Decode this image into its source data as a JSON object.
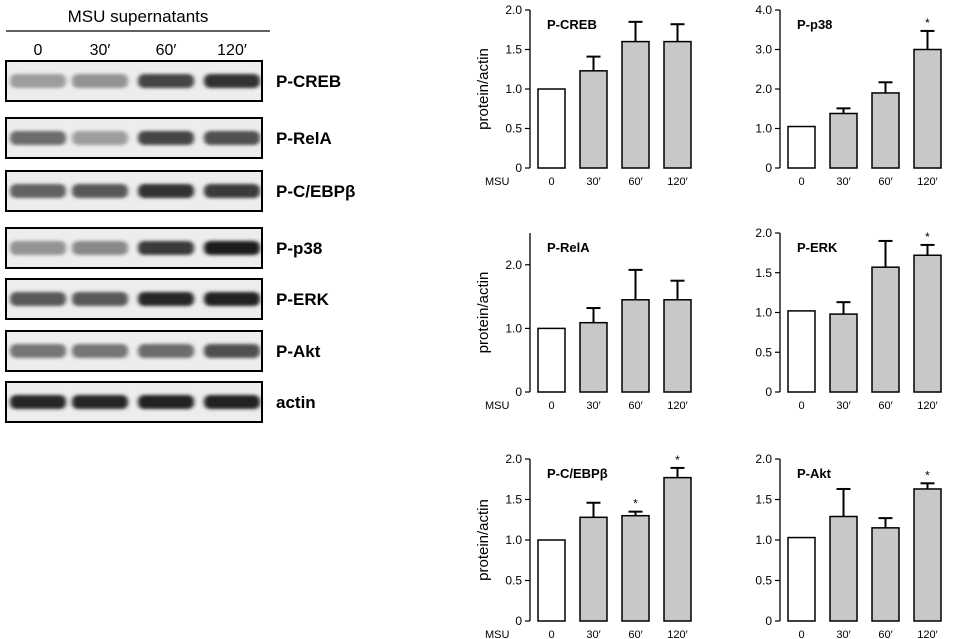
{
  "blot": {
    "header": "MSU supernatants",
    "lanes": [
      "0",
      "30′",
      "60′",
      "120′"
    ],
    "rows": [
      {
        "label": "P-CREB",
        "intensity": [
          0.3,
          0.35,
          0.75,
          0.85
        ]
      },
      {
        "label": "P-RelA",
        "intensity": [
          0.55,
          0.3,
          0.75,
          0.7
        ]
      },
      {
        "label": "P-C/EBPβ",
        "intensity": [
          0.6,
          0.65,
          0.85,
          0.8
        ]
      },
      {
        "label": "P-p38",
        "intensity": [
          0.35,
          0.4,
          0.8,
          0.95
        ]
      },
      {
        "label": "P-ERK",
        "intensity": [
          0.65,
          0.65,
          0.9,
          0.92
        ]
      },
      {
        "label": "P-Akt",
        "intensity": [
          0.5,
          0.5,
          0.55,
          0.7
        ]
      },
      {
        "label": "actin",
        "intensity": [
          0.9,
          0.9,
          0.92,
          0.92
        ]
      }
    ]
  },
  "colors": {
    "control_bar": "#ffffff",
    "treated_bar": "#c8c8c8",
    "stroke": "#000000"
  },
  "chart_data": [
    {
      "type": "bar",
      "title": "P-CREB",
      "ylabel": "protein/actin",
      "x_row_label": "MSU",
      "categories": [
        "0",
        "30′",
        "60′",
        "120′"
      ],
      "values": [
        1.0,
        1.23,
        1.6,
        1.6
      ],
      "errors": [
        0,
        0.18,
        0.25,
        0.22
      ],
      "significant": [
        false,
        false,
        false,
        false
      ],
      "ylim": [
        0,
        2.0
      ],
      "yticks": [
        "0",
        "0.5",
        "1.0",
        "1.5",
        "2.0"
      ],
      "ytick_values": [
        0,
        0.5,
        1.0,
        1.5,
        2.0
      ]
    },
    {
      "type": "bar",
      "title": "P-p38",
      "ylabel": "",
      "x_row_label": "",
      "categories": [
        "0",
        "30′",
        "60′",
        "120′"
      ],
      "values": [
        1.05,
        1.38,
        1.9,
        3.0
      ],
      "errors": [
        0,
        0.13,
        0.27,
        0.47
      ],
      "significant": [
        false,
        false,
        false,
        true
      ],
      "ylim": [
        0,
        4.0
      ],
      "yticks": [
        "0",
        "1.0",
        "2.0",
        "3.0",
        "4.0"
      ],
      "ytick_values": [
        0,
        1.0,
        2.0,
        3.0,
        4.0
      ]
    },
    {
      "type": "bar",
      "title": "P-RelA",
      "ylabel": "protein/actin",
      "x_row_label": "MSU",
      "categories": [
        "0",
        "30′",
        "60′",
        "120′"
      ],
      "values": [
        1.0,
        1.09,
        1.45,
        1.45
      ],
      "errors": [
        0,
        0.23,
        0.47,
        0.3
      ],
      "significant": [
        false,
        false,
        false,
        false
      ],
      "ylim": [
        0,
        2.5
      ],
      "yticks": [
        "0",
        "1.0",
        "2.0"
      ],
      "ytick_values": [
        0,
        1.0,
        2.0
      ]
    },
    {
      "type": "bar",
      "title": "P-ERK",
      "ylabel": "",
      "x_row_label": "",
      "categories": [
        "0",
        "30′",
        "60′",
        "120′"
      ],
      "values": [
        1.02,
        0.98,
        1.57,
        1.72
      ],
      "errors": [
        0,
        0.15,
        0.33,
        0.13
      ],
      "significant": [
        false,
        false,
        false,
        true
      ],
      "ylim": [
        0,
        2.0
      ],
      "yticks": [
        "0",
        "0.5",
        "1.0",
        "1.5",
        "2.0"
      ],
      "ytick_values": [
        0,
        0.5,
        1.0,
        1.5,
        2.0
      ]
    },
    {
      "type": "bar",
      "title": "P-C/EBPβ",
      "ylabel": "protein/actin",
      "x_row_label": "MSU",
      "categories": [
        "0",
        "30′",
        "60′",
        "120′"
      ],
      "values": [
        1.0,
        1.28,
        1.3,
        1.77
      ],
      "errors": [
        0,
        0.18,
        0.05,
        0.12
      ],
      "significant": [
        false,
        false,
        true,
        true
      ],
      "ylim": [
        0,
        2.0
      ],
      "yticks": [
        "0",
        "0.5",
        "1.0",
        "1.5",
        "2.0"
      ],
      "ytick_values": [
        0,
        0.5,
        1.0,
        1.5,
        2.0
      ]
    },
    {
      "type": "bar",
      "title": "P-Akt",
      "ylabel": "",
      "x_row_label": "",
      "categories": [
        "0",
        "30′",
        "60′",
        "120′"
      ],
      "values": [
        1.03,
        1.29,
        1.15,
        1.63
      ],
      "errors": [
        0,
        0.34,
        0.12,
        0.07
      ],
      "significant": [
        false,
        false,
        false,
        true
      ],
      "ylim": [
        0,
        2.0
      ],
      "yticks": [
        "0",
        "0.5",
        "1.0",
        "1.5",
        "2.0"
      ],
      "ytick_values": [
        0,
        0.5,
        1.0,
        1.5,
        2.0
      ]
    }
  ]
}
